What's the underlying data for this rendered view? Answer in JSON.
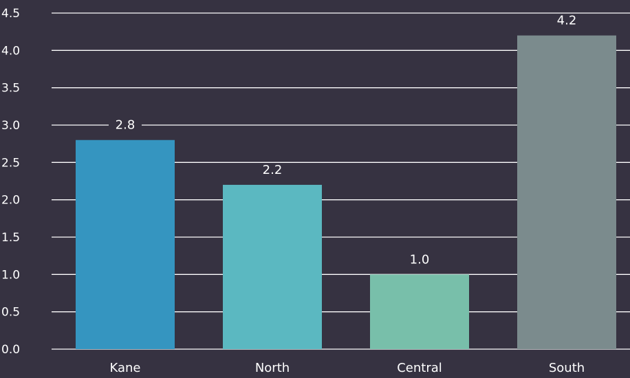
{
  "chart_data": {
    "type": "bar",
    "categories": [
      "Kane",
      "North",
      "Central",
      "South"
    ],
    "values": [
      2.8,
      2.2,
      1.0,
      4.2
    ],
    "value_labels": [
      "2.8",
      "2.2",
      "1.0",
      "4.2"
    ],
    "yticks": [
      "0.0",
      "0.5",
      "1.0",
      "1.5",
      "2.0",
      "2.5",
      "3.0",
      "3.5",
      "4.0",
      "4.5"
    ],
    "ylim": [
      0,
      4.5
    ],
    "grid": true,
    "colors": [
      "#3595c0",
      "#5bb8c1",
      "#78bfaa",
      "#7b8b8d"
    ],
    "background": "#363241",
    "title": "",
    "xlabel": "",
    "ylabel": ""
  }
}
